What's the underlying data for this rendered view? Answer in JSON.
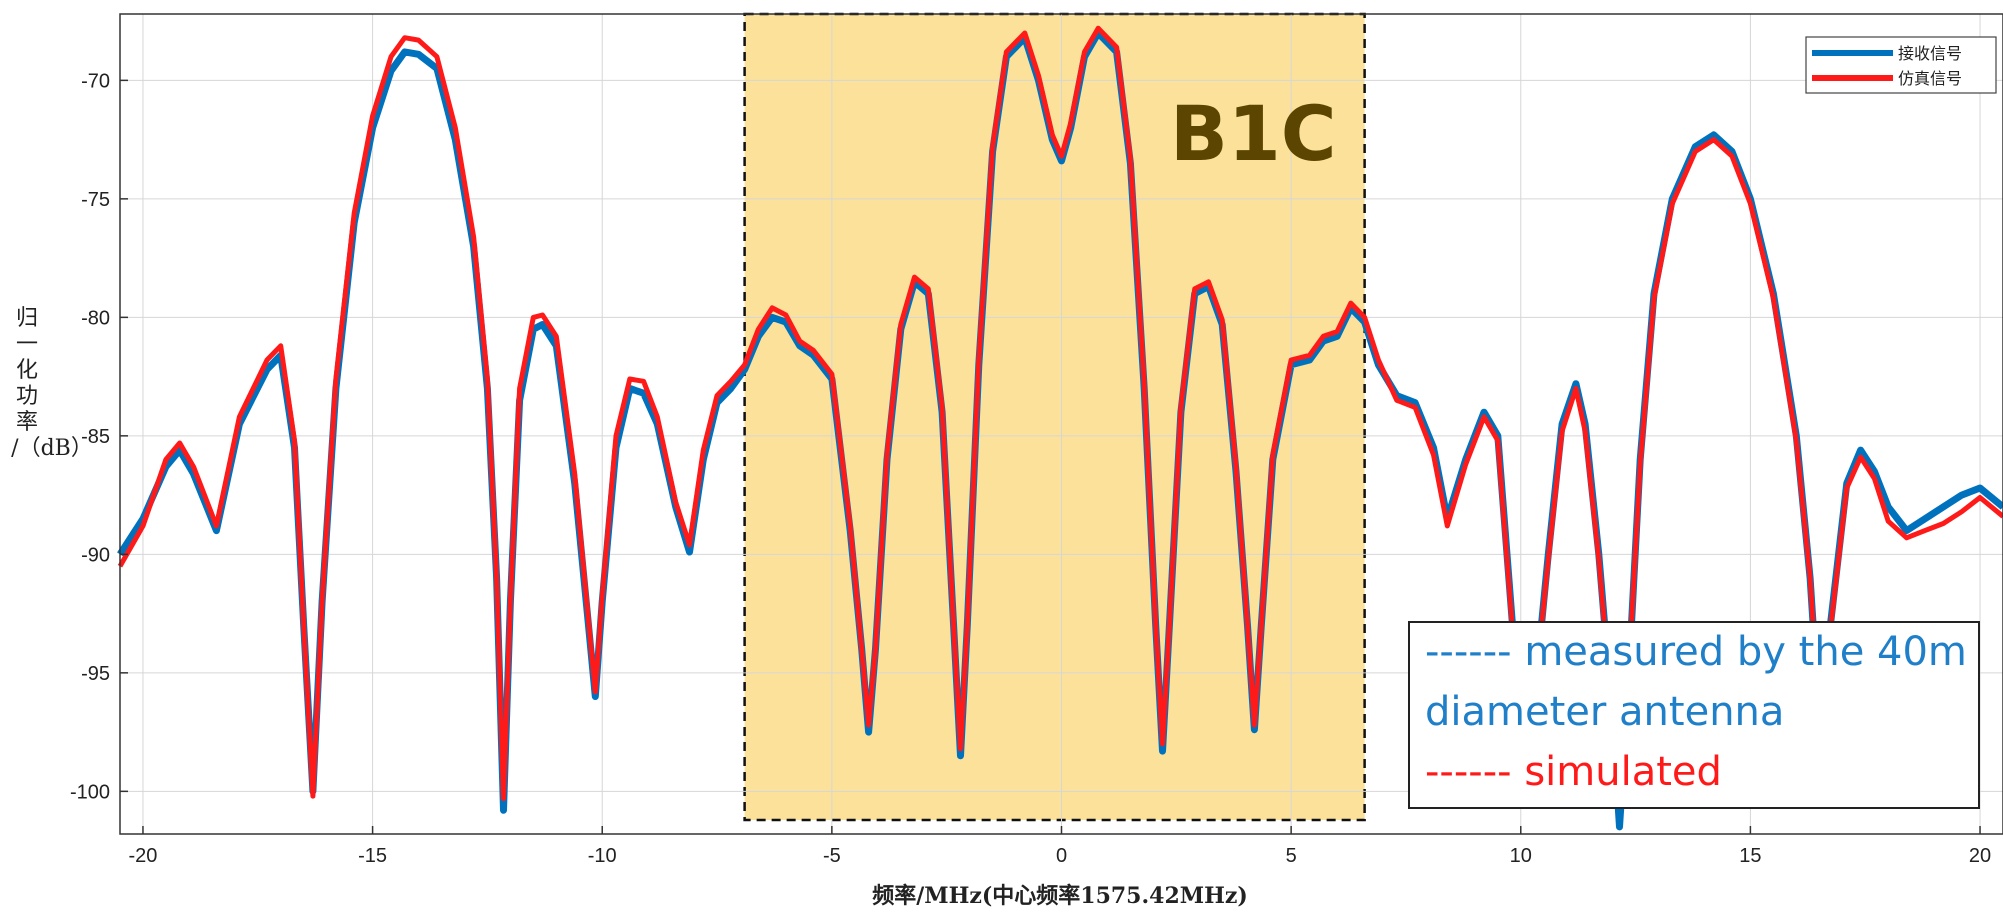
{
  "chart_data": {
    "type": "line",
    "xlabel": "频率/MHz(中心频率1575.42MHz)",
    "ylabel": "归一化功率/（dB）",
    "ylabel_lines": [
      "归",
      "一",
      "化",
      "功",
      "率",
      "/（dB）"
    ],
    "xlim": [
      -20.5,
      20.5
    ],
    "ylim": [
      -101.8,
      -67.2
    ],
    "xticks": [
      -20,
      -15,
      -10,
      -5,
      0,
      5,
      10,
      15,
      20
    ],
    "xtick_labels": [
      "-20",
      "-15",
      "-10",
      "-5",
      "0",
      "5",
      "10",
      "15",
      "20"
    ],
    "yticks": [
      -100,
      -95,
      -90,
      -85,
      -80,
      -75,
      -70
    ],
    "ytick_labels": [
      "-100",
      "-95",
      "-90",
      "-85",
      "-80",
      "-75",
      "-70"
    ],
    "grid": true,
    "legend": {
      "position": "top-right",
      "entries": [
        {
          "label": "接收信号",
          "color": "#0072bd"
        },
        {
          "label": "仿真信号",
          "color": "#ff1a1a"
        }
      ]
    },
    "highlight_region": {
      "label": "B1C",
      "x_range": [
        -6.9,
        6.6
      ],
      "fill_color": "#fbe19a",
      "border": "dashed"
    },
    "annotation": {
      "lines": [
        {
          "text": "------ measured by the 40m",
          "color": "#1f7fc8"
        },
        {
          "text": "diameter antenna",
          "color": "#1f7fc8"
        },
        {
          "text": "------ simulated",
          "color": "#ff1a1a"
        }
      ]
    },
    "series": [
      {
        "name": "接收信号",
        "color": "#0072bd",
        "x": [
          -20.5,
          -20.0,
          -19.5,
          -19.2,
          -18.9,
          -18.4,
          -17.9,
          -17.3,
          -17.0,
          -16.7,
          -16.5,
          -16.3,
          -16.1,
          -15.8,
          -15.4,
          -15.0,
          -14.6,
          -14.3,
          -14.0,
          -13.6,
          -13.2,
          -12.8,
          -12.5,
          -12.3,
          -12.15,
          -12.0,
          -11.8,
          -11.5,
          -11.3,
          -11.0,
          -10.6,
          -10.3,
          -10.15,
          -10.0,
          -9.7,
          -9.4,
          -9.1,
          -8.8,
          -8.4,
          -8.1,
          -7.8,
          -7.5,
          -7.2,
          -6.9,
          -6.6,
          -6.3,
          -6.0,
          -5.7,
          -5.4,
          -5.0,
          -4.6,
          -4.35,
          -4.2,
          -4.05,
          -3.8,
          -3.5,
          -3.2,
          -2.9,
          -2.6,
          -2.35,
          -2.2,
          -2.05,
          -1.8,
          -1.5,
          -1.2,
          -0.8,
          -0.5,
          -0.2,
          0.0,
          0.2,
          0.5,
          0.8,
          1.2,
          1.5,
          1.8,
          2.05,
          2.2,
          2.35,
          2.6,
          2.9,
          3.2,
          3.5,
          3.8,
          4.05,
          4.2,
          4.35,
          4.6,
          5.0,
          5.4,
          5.7,
          6.0,
          6.3,
          6.6,
          6.9,
          7.3,
          7.7,
          8.1,
          8.4,
          8.8,
          9.2,
          9.5,
          9.7,
          9.9,
          10.1,
          10.3,
          10.6,
          10.9,
          11.2,
          11.4,
          11.7,
          12.0,
          12.15,
          12.3,
          12.6,
          12.9,
          13.3,
          13.8,
          14.2,
          14.6,
          15.0,
          15.5,
          16.0,
          16.3,
          16.5,
          16.8,
          17.1,
          17.4,
          17.7,
          18.0,
          18.4,
          18.8,
          19.2,
          19.6,
          20.0,
          20.5
        ],
        "y": [
          -90.0,
          -88.5,
          -86.3,
          -85.6,
          -86.6,
          -89.0,
          -84.5,
          -82.2,
          -81.6,
          -85.5,
          -93.0,
          -100.0,
          -92.0,
          -83.0,
          -76.0,
          -72.0,
          -69.6,
          -68.8,
          -68.9,
          -69.5,
          -72.5,
          -77.0,
          -83.0,
          -91.0,
          -100.8,
          -92.0,
          -83.5,
          -80.5,
          -80.3,
          -81.2,
          -87.0,
          -93.0,
          -96.0,
          -92.0,
          -85.5,
          -83.0,
          -83.2,
          -84.5,
          -88.0,
          -89.9,
          -86.0,
          -83.6,
          -83.0,
          -82.2,
          -80.8,
          -80.0,
          -80.2,
          -81.2,
          -81.6,
          -82.6,
          -89.0,
          -94.0,
          -97.5,
          -94.0,
          -86.0,
          -80.5,
          -78.5,
          -79.0,
          -84.0,
          -93.0,
          -98.5,
          -93.0,
          -82.0,
          -73.0,
          -69.0,
          -68.2,
          -70.0,
          -72.5,
          -73.4,
          -72.0,
          -69.0,
          -68.0,
          -68.8,
          -73.5,
          -83.0,
          -93.0,
          -98.3,
          -93.0,
          -84.0,
          -79.0,
          -78.7,
          -80.3,
          -86.5,
          -93.0,
          -97.4,
          -93.0,
          -86.0,
          -82.0,
          -81.8,
          -81.0,
          -80.8,
          -79.6,
          -80.2,
          -82.0,
          -83.3,
          -83.6,
          -85.5,
          -88.5,
          -86.0,
          -84.0,
          -85.0,
          -90.0,
          -95.0,
          -100.0,
          -96.0,
          -90.0,
          -84.5,
          -82.8,
          -84.5,
          -90.0,
          -97.0,
          -101.5,
          -97.0,
          -86.0,
          -79.0,
          -75.0,
          -72.8,
          -72.3,
          -73.0,
          -75.0,
          -79.0,
          -85.0,
          -91.0,
          -97.0,
          -92.0,
          -87.0,
          -85.6,
          -86.5,
          -88.0,
          -89.0,
          -88.5,
          -88.0,
          -87.5,
          -87.2,
          -88.0
        ]
      },
      {
        "name": "仿真信号",
        "color": "#ff1a1a",
        "x": [
          -20.5,
          -20.0,
          -19.5,
          -19.2,
          -18.9,
          -18.4,
          -17.9,
          -17.3,
          -17.0,
          -16.7,
          -16.5,
          -16.3,
          -16.1,
          -15.8,
          -15.4,
          -15.0,
          -14.6,
          -14.3,
          -14.0,
          -13.6,
          -13.2,
          -12.8,
          -12.5,
          -12.3,
          -12.15,
          -12.0,
          -11.8,
          -11.5,
          -11.3,
          -11.0,
          -10.6,
          -10.3,
          -10.15,
          -10.0,
          -9.7,
          -9.4,
          -9.1,
          -8.8,
          -8.4,
          -8.1,
          -7.8,
          -7.5,
          -7.2,
          -6.9,
          -6.6,
          -6.3,
          -6.0,
          -5.7,
          -5.4,
          -5.0,
          -4.6,
          -4.35,
          -4.2,
          -4.05,
          -3.8,
          -3.5,
          -3.2,
          -2.9,
          -2.6,
          -2.35,
          -2.2,
          -2.05,
          -1.8,
          -1.5,
          -1.2,
          -0.8,
          -0.5,
          -0.2,
          0.0,
          0.2,
          0.5,
          0.8,
          1.2,
          1.5,
          1.8,
          2.05,
          2.2,
          2.35,
          2.6,
          2.9,
          3.2,
          3.5,
          3.8,
          4.05,
          4.2,
          4.35,
          4.6,
          5.0,
          5.4,
          5.7,
          6.0,
          6.3,
          6.6,
          6.9,
          7.3,
          7.7,
          8.1,
          8.4,
          8.8,
          9.2,
          9.5,
          9.7,
          9.9,
          10.1,
          10.3,
          10.6,
          10.9,
          11.2,
          11.4,
          11.7,
          12.0,
          12.15,
          12.3,
          12.6,
          12.9,
          13.3,
          13.8,
          14.2,
          14.6,
          15.0,
          15.5,
          16.0,
          16.3,
          16.5,
          16.8,
          17.1,
          17.4,
          17.7,
          18.0,
          18.4,
          18.8,
          19.2,
          19.6,
          20.0,
          20.5
        ],
        "y": [
          -90.5,
          -88.8,
          -86.0,
          -85.3,
          -86.3,
          -88.8,
          -84.2,
          -81.8,
          -81.2,
          -85.2,
          -93.0,
          -100.2,
          -92.0,
          -82.6,
          -75.6,
          -71.5,
          -69.0,
          -68.2,
          -68.3,
          -69.0,
          -72.0,
          -76.6,
          -82.6,
          -91.0,
          -100.3,
          -92.0,
          -83.0,
          -80.0,
          -79.9,
          -80.8,
          -86.6,
          -92.8,
          -95.8,
          -91.8,
          -85.0,
          -82.6,
          -82.7,
          -84.2,
          -87.8,
          -89.6,
          -85.6,
          -83.3,
          -82.7,
          -82.0,
          -80.5,
          -79.6,
          -79.9,
          -81.0,
          -81.4,
          -82.4,
          -88.8,
          -94.0,
          -97.2,
          -94.0,
          -85.8,
          -80.3,
          -78.3,
          -78.8,
          -83.8,
          -93.0,
          -98.2,
          -93.0,
          -81.8,
          -72.8,
          -68.8,
          -68.0,
          -69.8,
          -72.3,
          -73.2,
          -71.8,
          -68.8,
          -67.8,
          -68.6,
          -73.3,
          -82.8,
          -93.0,
          -98.0,
          -93.0,
          -83.8,
          -78.8,
          -78.5,
          -80.1,
          -86.3,
          -93.0,
          -97.2,
          -93.0,
          -85.8,
          -81.8,
          -81.6,
          -80.8,
          -80.6,
          -79.4,
          -80.0,
          -81.8,
          -83.5,
          -83.8,
          -85.8,
          -88.8,
          -86.2,
          -84.2,
          -85.2,
          -90.2,
          -95.2,
          -100.0,
          -96.0,
          -90.2,
          -84.8,
          -83.0,
          -84.8,
          -90.2,
          -97.0,
          -100.0,
          -96.8,
          -86.2,
          -79.2,
          -75.2,
          -73.0,
          -72.5,
          -73.2,
          -75.2,
          -79.2,
          -85.2,
          -91.0,
          -97.0,
          -92.2,
          -87.2,
          -85.9,
          -86.8,
          -88.6,
          -89.3,
          -89.0,
          -88.7,
          -88.2,
          -87.6,
          -88.4
        ]
      }
    ]
  }
}
